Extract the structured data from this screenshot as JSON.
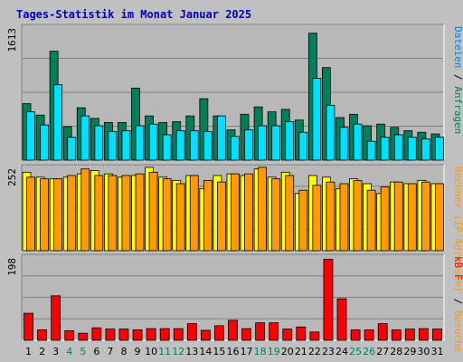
{
  "chart_data": {
    "type": "bar",
    "title": "Tages-Statistik im Monat Januar 2025",
    "days": [
      "1",
      "2",
      "3",
      "4",
      "5",
      "6",
      "7",
      "8",
      "9",
      "10",
      "11",
      "12",
      "13",
      "14",
      "15",
      "16",
      "17",
      "18",
      "19",
      "20",
      "21",
      "22",
      "23",
      "24",
      "25",
      "26",
      "27",
      "28",
      "29",
      "30",
      "31"
    ],
    "weekend_days": [
      4,
      5,
      11,
      12,
      18,
      19,
      25,
      26
    ],
    "colors": {
      "background": "#c0c0c0",
      "plot_bg": "#b8b8b8",
      "title": "#0000c0",
      "anfragen": "#00805a",
      "dateien": "#00e0ff",
      "rechner": "#ffff00",
      "besuche": "#ff9a00",
      "kb": "#ff0000",
      "weekend_label": "#008060",
      "weekday_label": "#000000"
    },
    "panels": [
      {
        "name": "hits",
        "axis_max_label": "1613",
        "ymax": 1613,
        "right_label_parts": [
          {
            "text": "Dateien",
            "color": "#0080ff"
          },
          {
            "text": " / ",
            "color": "#000000"
          },
          {
            "text": "Anfragen",
            "color": "#00805a"
          }
        ],
        "series": [
          {
            "name": "Anfragen",
            "color_key": "anfragen",
            "values": [
              690,
              550,
              1330,
              410,
              640,
              510,
              460,
              460,
              880,
              540,
              460,
              470,
              540,
              750,
              540,
              370,
              560,
              650,
              590,
              620,
              490,
              1550,
              1130,
              520,
              560,
              420,
              440,
              400,
              360,
              340,
              320
            ]
          },
          {
            "name": "Dateien",
            "color_key": "dateien",
            "values": [
              590,
              430,
              920,
              280,
              540,
              420,
              350,
              360,
              420,
              440,
              310,
              360,
              360,
              350,
              540,
              290,
              370,
              420,
              420,
              470,
              340,
              1000,
              670,
              400,
              440,
              230,
              280,
              310,
              280,
              260,
              280
            ]
          }
        ]
      },
      {
        "name": "visitors",
        "axis_max_label": "252",
        "ymax": 252,
        "right_label_parts": [
          {
            "text": "Rechner (IP-Adressen)",
            "color": "#ff9a00"
          },
          {
            "text": " / ",
            "color": "#000000"
          },
          {
            "text": "Besuche",
            "color": "#ff9a00"
          }
        ],
        "series": [
          {
            "name": "Rechner",
            "color_key": "rechner",
            "values": [
              240,
              225,
              220,
              225,
              235,
              245,
              235,
              225,
              230,
              255,
              225,
              215,
              230,
              190,
              230,
              235,
              230,
              250,
              225,
              240,
              175,
              230,
              225,
              190,
              220,
              205,
              175,
              210,
              205,
              215,
              205
            ]
          },
          {
            "name": "Besuche",
            "color_key": "besuche",
            "values": [
              225,
              220,
              220,
              230,
              250,
              230,
              230,
              230,
              235,
              240,
              220,
              205,
              230,
              215,
              210,
              235,
              235,
              255,
              220,
              230,
              185,
              200,
              210,
              205,
              215,
              185,
              195,
              210,
              205,
              210,
              205
            ]
          }
        ]
      },
      {
        "name": "kb",
        "axis_max_label": "198",
        "ymax": 198,
        "right_label_parts": [
          {
            "text": "kB F",
            "color": "#ff0000"
          }
        ],
        "series": [
          {
            "name": "kB F",
            "color_key": "kb",
            "values": [
              65,
              25,
              107,
              23,
              17,
              30,
              27,
              27,
              25,
              28,
              28,
              28,
              40,
              24,
              35,
              48,
              28,
              42,
              42,
              27,
              32,
              20,
              195,
              100,
              25,
              25,
              40,
              25,
              27,
              28,
              27
            ]
          }
        ]
      }
    ]
  }
}
